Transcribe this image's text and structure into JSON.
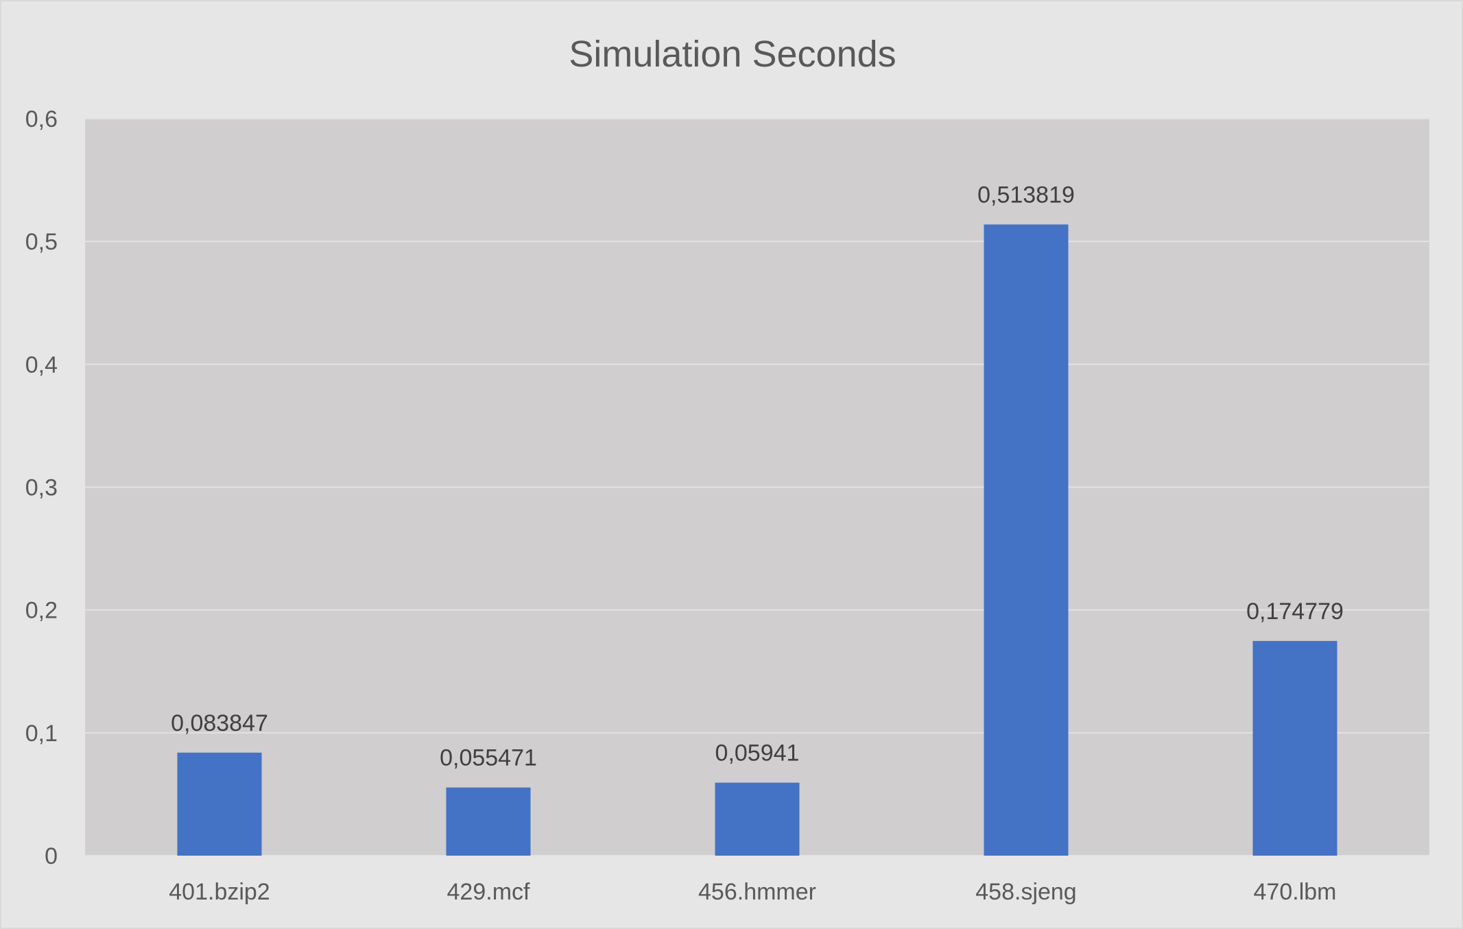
{
  "chart_data": {
    "type": "bar",
    "title": "Simulation Seconds",
    "xlabel": "",
    "ylabel": "",
    "categories": [
      "401.bzip2",
      "429.mcf",
      "456.hmmer",
      "458.sjeng",
      "470.lbm"
    ],
    "values": [
      0.083847,
      0.055471,
      0.05941,
      0.513819,
      0.174779
    ],
    "data_labels": [
      "0,083847",
      "0,055471",
      "0,05941",
      "0,513819",
      "0,174779"
    ],
    "ylim": [
      0,
      0.6
    ],
    "y_ticks": [
      0,
      0.1,
      0.2,
      0.3,
      0.4,
      0.5,
      0.6
    ],
    "y_tick_labels": [
      "0",
      "0,1",
      "0,2",
      "0,3",
      "0,4",
      "0,5",
      "0,6"
    ],
    "grid": true,
    "legend": "none",
    "colors": {
      "bar": "#4472c4",
      "plot_background": "#d0cece",
      "chart_background": "#e6e6e6",
      "gridline": "#e3e3e3",
      "text": "#595959"
    }
  }
}
